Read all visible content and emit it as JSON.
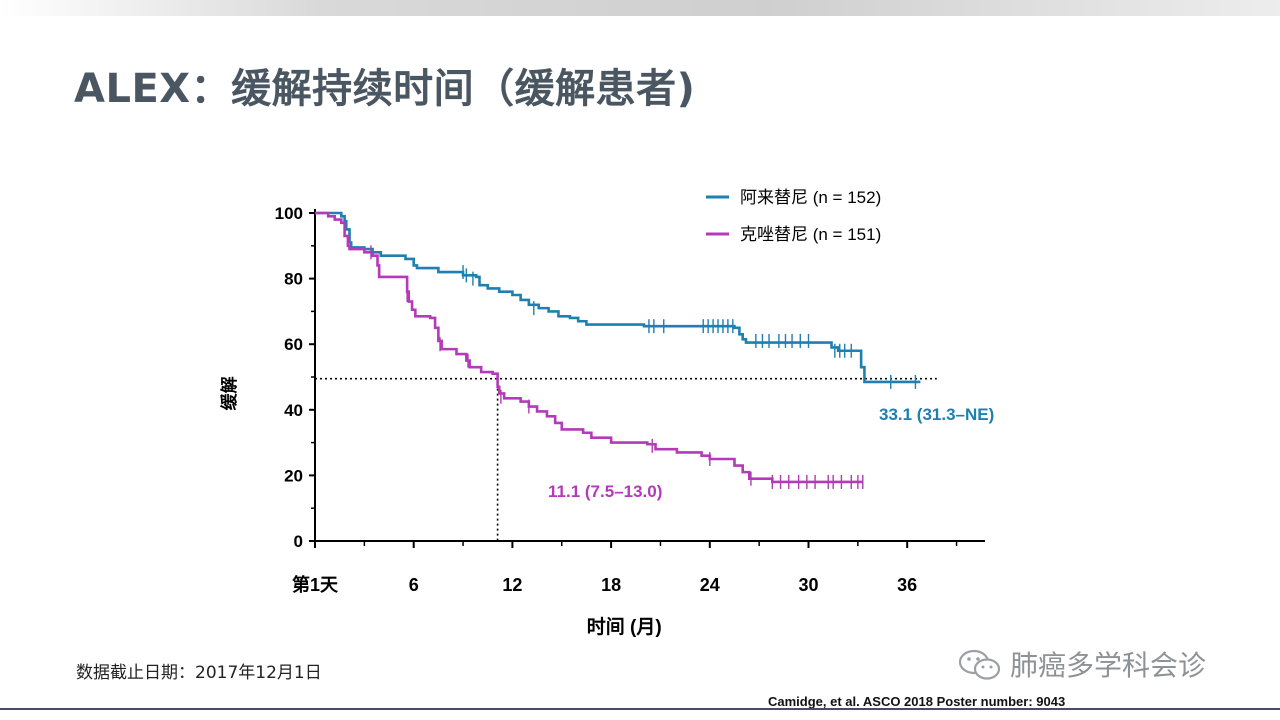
{
  "title": "ALEX：缓解持续时间（缓解患者)",
  "footnote": "数据截止日期：2017年12月1日",
  "citation": "Camidge, et al. ASCO 2018 Poster number: 9043",
  "watermark": "肺癌多学科会诊",
  "colors": {
    "alectinib": "#1f7fb0",
    "crizotinib": "#b33ab8",
    "axis": "#000000"
  },
  "chart_data": {
    "type": "line",
    "ylabel": "缓解",
    "xlabel": "时间 (月)",
    "xlim": [
      0,
      40
    ],
    "ylim": [
      0,
      100
    ],
    "xticks": [
      0,
      6,
      12,
      18,
      24,
      30,
      36
    ],
    "xtick_labels": [
      "第1天",
      "6",
      "12",
      "18",
      "24",
      "30",
      "36"
    ],
    "yticks": [
      0,
      20,
      40,
      60,
      80,
      100
    ],
    "median_line": {
      "y": 49.5,
      "x_start": 0,
      "x_end": 37.8,
      "drop_x": 11.1
    },
    "series": [
      {
        "name": "阿来替尼 (n = 152)",
        "color": "#1f7fb0",
        "median_label": "33.1 (31.3–NE)",
        "steps": [
          [
            0,
            100
          ],
          [
            1.4,
            100
          ],
          [
            1.6,
            99
          ],
          [
            1.8,
            97.5
          ],
          [
            1.9,
            95
          ],
          [
            2.1,
            91
          ],
          [
            2.2,
            89.5
          ],
          [
            3,
            89
          ],
          [
            3.5,
            88
          ],
          [
            4,
            87
          ],
          [
            3.7,
            87
          ],
          [
            5.5,
            86
          ],
          [
            6,
            84
          ],
          [
            6.2,
            83.2
          ],
          [
            7.5,
            83.2
          ],
          [
            7.3,
            82
          ],
          [
            9,
            82
          ],
          [
            9,
            81
          ],
          [
            9.8,
            80.5
          ],
          [
            10,
            78
          ],
          [
            10.5,
            77
          ],
          [
            11.2,
            76
          ],
          [
            12,
            75
          ],
          [
            12.5,
            73.5
          ],
          [
            13,
            72
          ],
          [
            13.6,
            71
          ],
          [
            14.2,
            70
          ],
          [
            14.8,
            68.5
          ],
          [
            15.5,
            68
          ],
          [
            16,
            67
          ],
          [
            16.5,
            66
          ],
          [
            19.5,
            66
          ],
          [
            20,
            65.5
          ],
          [
            25.5,
            65
          ],
          [
            25.8,
            63
          ],
          [
            26,
            61.5
          ],
          [
            26.2,
            60.5
          ],
          [
            31.2,
            60.5
          ],
          [
            31.4,
            59
          ],
          [
            31.8,
            58
          ],
          [
            33.1,
            58
          ],
          [
            33.2,
            53
          ],
          [
            33.4,
            48.5
          ],
          [
            36.8,
            48.5
          ]
        ],
        "censor": [
          [
            9.0,
            82
          ],
          [
            9.2,
            81
          ],
          [
            9.6,
            80
          ],
          [
            13.3,
            71
          ],
          [
            20.3,
            65.5
          ],
          [
            20.6,
            65.5
          ],
          [
            21.2,
            65.5
          ],
          [
            23.6,
            65.5
          ],
          [
            23.9,
            65.5
          ],
          [
            24.2,
            65.5
          ],
          [
            24.5,
            65.5
          ],
          [
            24.8,
            65.5
          ],
          [
            25.1,
            65.5
          ],
          [
            25.4,
            65.5
          ],
          [
            26.8,
            61
          ],
          [
            27.2,
            61
          ],
          [
            27.6,
            61
          ],
          [
            28.2,
            61
          ],
          [
            28.6,
            61
          ],
          [
            29.0,
            61
          ],
          [
            29.5,
            61
          ],
          [
            30.0,
            61
          ],
          [
            31.6,
            58
          ],
          [
            31.9,
            58
          ],
          [
            32.2,
            58
          ],
          [
            32.6,
            58
          ],
          [
            35.0,
            48.5
          ],
          [
            36.5,
            48.5
          ]
        ]
      },
      {
        "name": "克唑替尼 (n = 151)",
        "color": "#b33ab8",
        "median_label": "11.1 (7.5–13.0)",
        "steps": [
          [
            0,
            100
          ],
          [
            0.8,
            99
          ],
          [
            1.2,
            98
          ],
          [
            1.6,
            97
          ],
          [
            1.8,
            93
          ],
          [
            2,
            90
          ],
          [
            2.1,
            89
          ],
          [
            2.8,
            89
          ],
          [
            3,
            88
          ],
          [
            3.5,
            87
          ],
          [
            3.8,
            84
          ],
          [
            3.9,
            80.5
          ],
          [
            5.5,
            80.5
          ],
          [
            5.6,
            76
          ],
          [
            5.7,
            73
          ],
          [
            5.9,
            70.5
          ],
          [
            6.1,
            68.5
          ],
          [
            7.0,
            68
          ],
          [
            7.3,
            65
          ],
          [
            7.5,
            61
          ],
          [
            7.7,
            58.5
          ],
          [
            8.6,
            57
          ],
          [
            9.2,
            55
          ],
          [
            9.4,
            53
          ],
          [
            10.1,
            51.5
          ],
          [
            10.8,
            51
          ],
          [
            11.1,
            51
          ],
          [
            11.1,
            47
          ],
          [
            11.2,
            45
          ],
          [
            11.5,
            43.5
          ],
          [
            12.5,
            42.5
          ],
          [
            13,
            41
          ],
          [
            13.5,
            39.5
          ],
          [
            14.1,
            38
          ],
          [
            14.6,
            36
          ],
          [
            15,
            34
          ],
          [
            16.3,
            33
          ],
          [
            16.8,
            31.5
          ],
          [
            18,
            30
          ],
          [
            20.2,
            29.5
          ],
          [
            20.7,
            28
          ],
          [
            22,
            27
          ],
          [
            23.5,
            26
          ],
          [
            24,
            25
          ],
          [
            25.5,
            23
          ],
          [
            26,
            21
          ],
          [
            26.4,
            19
          ],
          [
            27.8,
            18
          ],
          [
            33.3,
            18
          ]
        ],
        "censor": [
          [
            3.4,
            88
          ],
          [
            5.6,
            75
          ],
          [
            7.6,
            60
          ],
          [
            9.3,
            55
          ],
          [
            11.3,
            44
          ],
          [
            13.0,
            41
          ],
          [
            20.5,
            29
          ],
          [
            24.0,
            25
          ],
          [
            26.5,
            19
          ],
          [
            27.8,
            18
          ],
          [
            28.3,
            18
          ],
          [
            28.8,
            18
          ],
          [
            29.4,
            18
          ],
          [
            29.9,
            18
          ],
          [
            30.4,
            18
          ],
          [
            31.2,
            18
          ],
          [
            31.5,
            18
          ],
          [
            32.0,
            18
          ],
          [
            32.6,
            18
          ],
          [
            33.0,
            18
          ],
          [
            33.3,
            18
          ]
        ]
      }
    ]
  }
}
